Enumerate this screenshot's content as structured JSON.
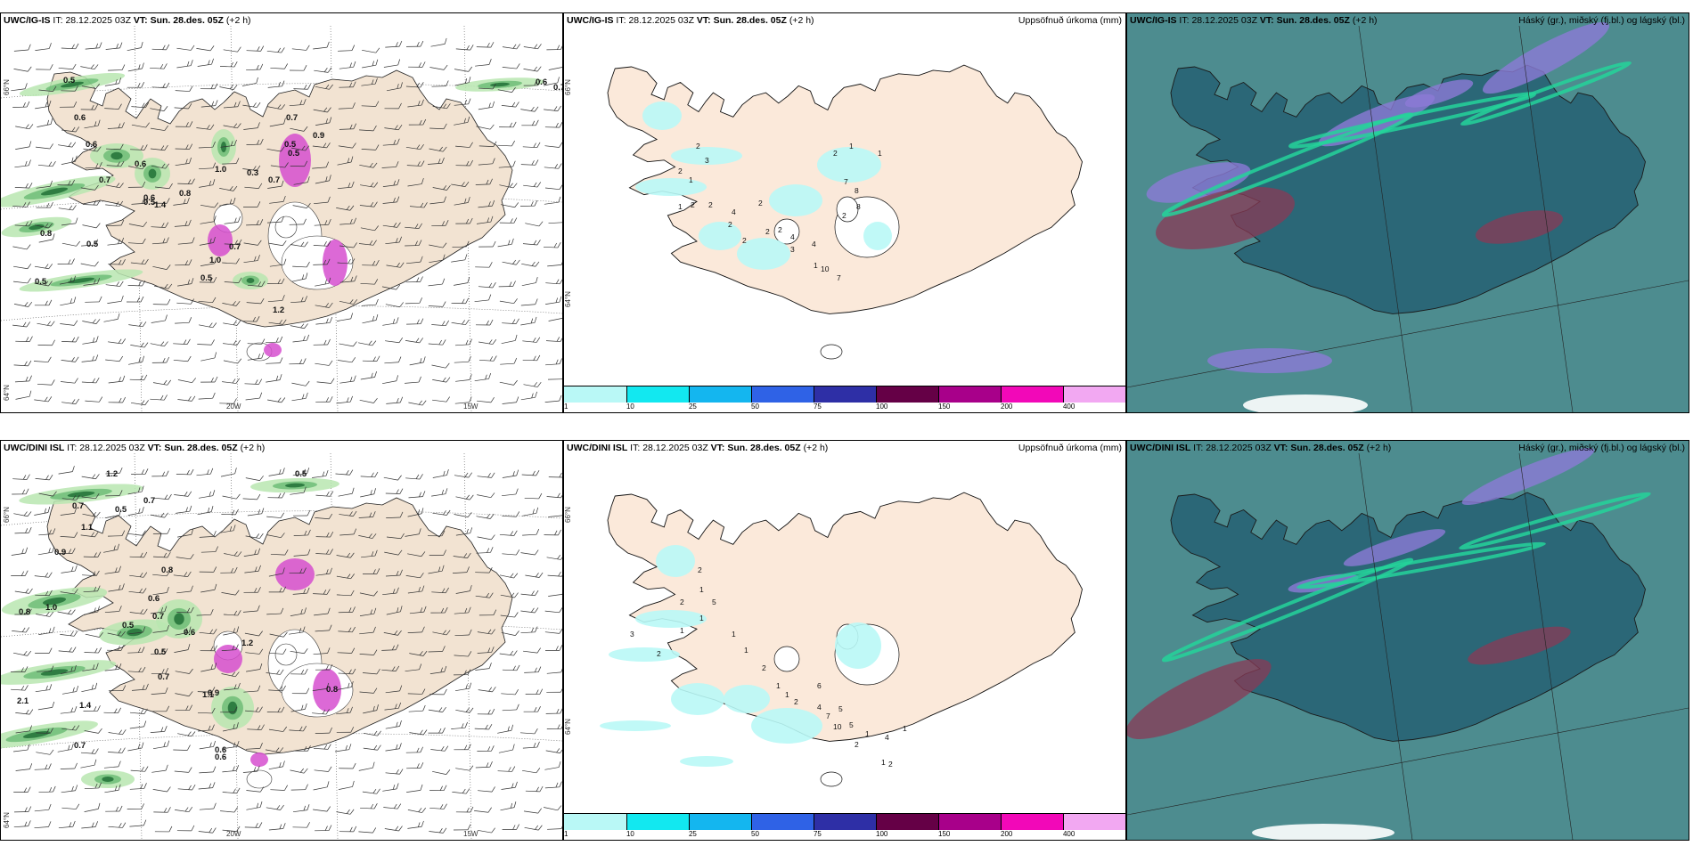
{
  "rows": [
    {
      "model": "UWC/IG-IS",
      "it_label": "IT:",
      "it_value": "28.12.2025 03Z",
      "vt_label": "VT:",
      "vt_value": "Sun. 28.des. 05Z",
      "lead": "(+2 h)"
    },
    {
      "model": "UWC/DINI ISL",
      "it_label": "IT:",
      "it_value": "28.12.2025 03Z",
      "vt_label": "VT:",
      "vt_value": "Sun. 28.des. 05Z",
      "lead": "(+2 h)"
    }
  ],
  "precip_title": "Uppsöfnuð úrkoma (mm)",
  "cloud_title": "Háský (gr.), miðský (fj.bl.) og lágský (bl.)",
  "grid_labels": {
    "lat_66": "66°N",
    "lat_64": "64°N",
    "lon_20w": "20W",
    "lon_15w": "15W"
  },
  "colorbar": {
    "colors": [
      "#b9f8f6",
      "#12e8f0",
      "#14b6ef",
      "#2f62e6",
      "#2e2fa6",
      "#650046",
      "#a8008a",
      "#f208b8",
      "#f2a8f2"
    ],
    "labels": [
      "1",
      "10",
      "25",
      "50",
      "75",
      "100",
      "150",
      "200",
      "400"
    ]
  },
  "wind_values_top": [
    "0.5",
    "0.6",
    "0.6",
    "0.7",
    "0.6",
    "0.6",
    "0.8",
    "1.4",
    "1.0",
    "0.7",
    "0.5",
    "0.7",
    "0.5",
    "0.7",
    "1.2",
    "0.5",
    "0.3",
    "0.5",
    "0.5",
    "0.6",
    "0.7",
    "0.9",
    "1.0",
    "0.5",
    "0.8"
  ],
  "wind_values_bottom": [
    "1.2",
    "0.7",
    "1.1",
    "0.9",
    "0.5",
    "0.7",
    "0.7",
    "0.8",
    "0.6",
    "0.5",
    "1.0",
    "0.8",
    "0.6",
    "0.5",
    "0.7",
    "0.9",
    "2.1",
    "1.4",
    "0.7",
    "0.5",
    "1.1",
    "0.6",
    "0.6",
    "1.2",
    "0.8"
  ],
  "precip_values_top": [
    "2",
    "3",
    "2",
    "1",
    "1",
    "2",
    "2",
    "4",
    "2",
    "2",
    "2",
    "4",
    "3",
    "4",
    "1",
    "7",
    "8",
    "8",
    "2",
    "2",
    "1",
    "2",
    "1",
    "2",
    "10",
    "7"
  ],
  "precip_values_bottom": [
    "2",
    "1",
    "2",
    "5",
    "1",
    "1",
    "2",
    "3",
    "1",
    "1",
    "2",
    "1",
    "1",
    "2",
    "4",
    "6",
    "5",
    "5",
    "2",
    "1",
    "1",
    "2",
    "4",
    "1",
    "7",
    "10"
  ]
}
